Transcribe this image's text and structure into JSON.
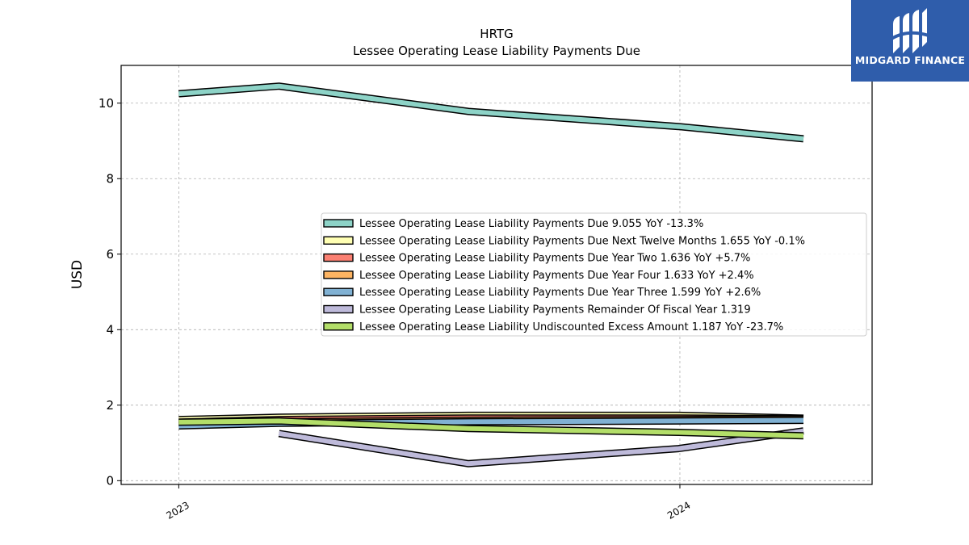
{
  "chart_data": {
    "type": "line",
    "title": "HRTG",
    "subtitle": "Lessee Operating Lease Liability Payments Due",
    "xlabel": "",
    "ylabel": "USD",
    "x": [
      "2023-01-01",
      "2023-03-15",
      "2023-07-31",
      "2023-12-31",
      "2024-03-31"
    ],
    "x_tick_labels": [
      "2023",
      "2024"
    ],
    "x_ticks": [
      "2023-01-01",
      "2024-01-01"
    ],
    "ylim": [
      -0.1,
      11.0
    ],
    "xlim": [
      "2022-11-20",
      "2024-05-20"
    ],
    "y_ticks": [
      0,
      2,
      4,
      6,
      8,
      10
    ],
    "grid": true,
    "legend_position": "center-right",
    "series": [
      {
        "name": "Lessee Operating Lease Liability Payments Due",
        "legend_suffix": "9.055 YoY -13.3%",
        "color": "#8dd3c7",
        "values": [
          10.25,
          10.45,
          9.78,
          9.38,
          9.055
        ]
      },
      {
        "name": "Lessee Operating Lease Liability Payments Due Next Twelve Months",
        "legend_suffix": "1.655 YoY -0.1%",
        "color": "#ffffb3",
        "values": [
          1.62,
          1.68,
          1.73,
          1.73,
          1.655
        ]
      },
      {
        "name": "Lessee Operating Lease Liability Payments Due Year Two",
        "legend_suffix": "1.636 YoY +5.7%",
        "color": "#fb8072",
        "values": [
          1.55,
          1.62,
          1.66,
          1.66,
          1.636
        ]
      },
      {
        "name": "Lessee Operating Lease Liability Payments Due Year Four",
        "legend_suffix": "1.633 YoY +2.4%",
        "color": "#fdb462",
        "values": [
          1.5,
          1.56,
          1.6,
          1.62,
          1.633
        ]
      },
      {
        "name": "Lessee Operating Lease Liability Payments Due Year Three",
        "legend_suffix": "1.599 YoY +2.6%",
        "color": "#80b1d3",
        "values": [
          1.45,
          1.52,
          1.56,
          1.58,
          1.599
        ]
      },
      {
        "name": "Lessee Operating Lease Liability Payments Remainder Of Fiscal Year",
        "legend_suffix": "1.319",
        "color": "#bebada",
        "values": [
          null,
          1.25,
          0.45,
          0.85,
          1.319
        ]
      },
      {
        "name": "Lessee Operating Lease Liability Undiscounted Excess Amount",
        "legend_suffix": "1.187 YoY -23.7%",
        "color": "#b3de69",
        "values": [
          1.55,
          1.58,
          1.38,
          1.28,
          1.187
        ]
      }
    ]
  },
  "logo": {
    "text": "MIDGARD FINANCE"
  }
}
